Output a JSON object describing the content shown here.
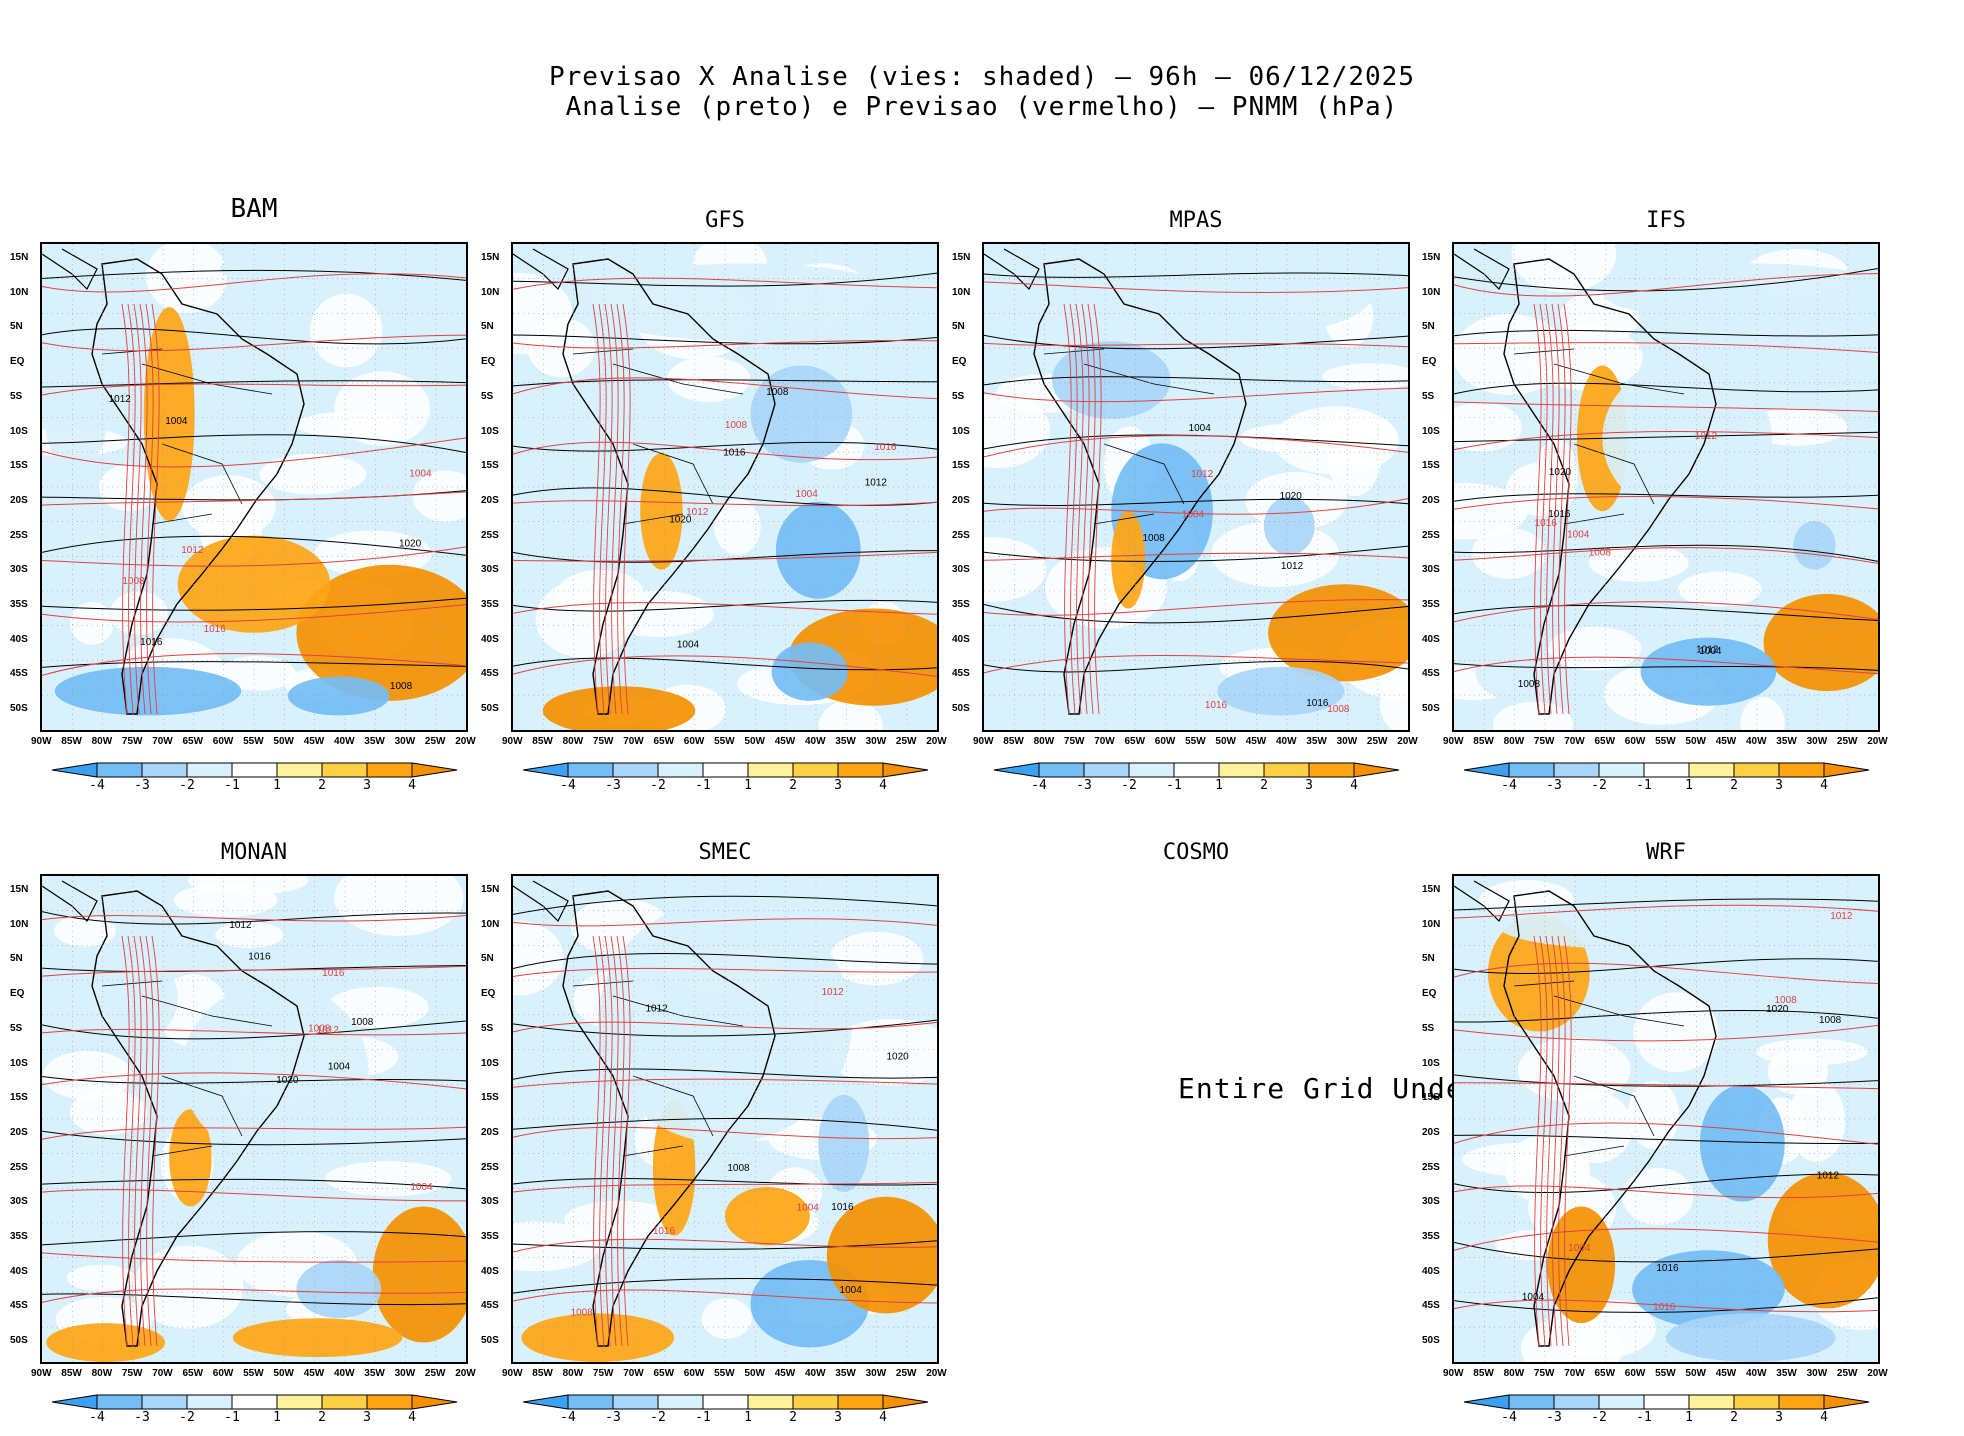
{
  "header": {
    "line1": "Previsao X Analise (vies: shaded) — 96h — 06/12/2025",
    "line2": "Analise (preto) e Previsao (vermelho) — PNMM (hPa)"
  },
  "panels": [
    {
      "name": "BAM",
      "status": "data"
    },
    {
      "name": "GFS",
      "status": "data"
    },
    {
      "name": "MPAS",
      "status": "data"
    },
    {
      "name": "IFS",
      "status": "data"
    },
    {
      "name": "MONAN",
      "status": "data"
    },
    {
      "name": "SMEC",
      "status": "data"
    },
    {
      "name": "COSMO",
      "status": "undef",
      "message": "Entire Grid Undef"
    },
    {
      "name": "WRF",
      "status": "data"
    }
  ],
  "axes": {
    "lat_labels": [
      "15N",
      "10N",
      "5N",
      "EQ",
      "5S",
      "10S",
      "15S",
      "20S",
      "25S",
      "30S",
      "35S",
      "40S",
      "45S",
      "50S"
    ],
    "lon_labels": [
      "90W",
      "85W",
      "80W",
      "75W",
      "70W",
      "65W",
      "60W",
      "55W",
      "50W",
      "45W",
      "40W",
      "35W",
      "30W",
      "25W",
      "20W"
    ]
  },
  "colorbar": {
    "labels": [
      "-4",
      "-3",
      "-2",
      "-1",
      "1",
      "2",
      "3",
      "4"
    ],
    "colors": [
      "#3ba1f0",
      "#74bdf5",
      "#a9d6f8",
      "#d8f1fd",
      "#ffffff",
      "#fff29a",
      "#ffcf45",
      "#ffa514",
      "#f59000"
    ]
  },
  "contours": {
    "analysis_color": "#000000",
    "forecast_color": "#e04040",
    "labels": [
      "1004",
      "1008",
      "1012",
      "1016",
      "1020"
    ]
  }
}
